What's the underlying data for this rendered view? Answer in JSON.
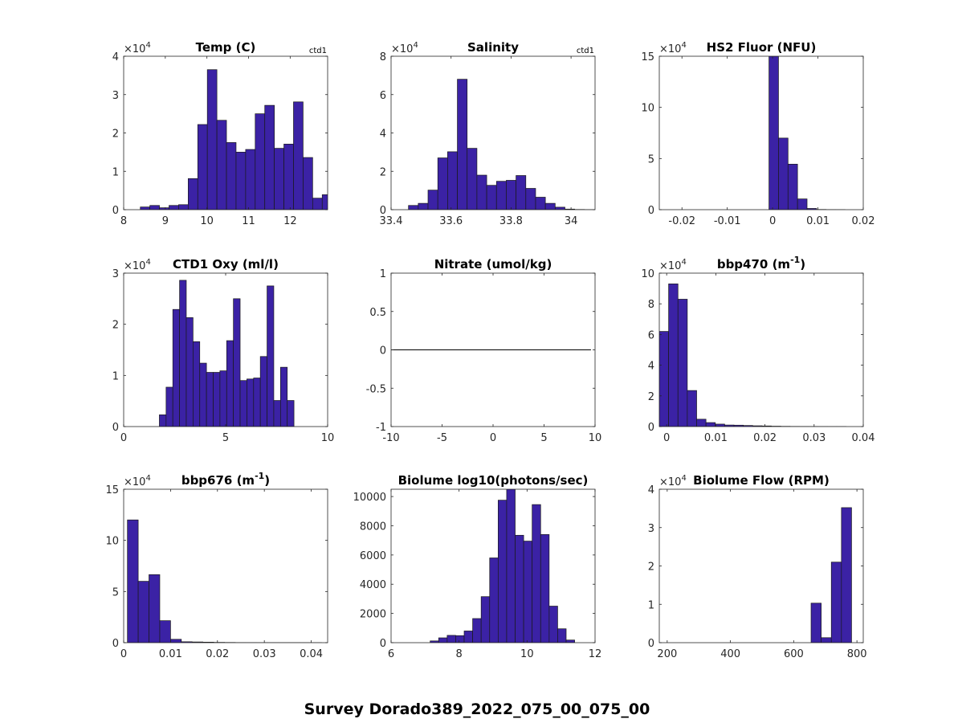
{
  "figure": {
    "suptitle": "Survey Dorado389_2022_075_00_075_00"
  },
  "colors": {
    "bar_fill": "#3b22a5",
    "bar_edge": "#1a1a1a",
    "axis": "#262626"
  },
  "chart_data": [
    {
      "type": "bar",
      "title": "Temp (C)",
      "title_sup": "",
      "corner_label": "ctd1",
      "xlim": [
        8,
        12.9
      ],
      "ylim": [
        0,
        40000
      ],
      "xticks": [
        8,
        9,
        10,
        11,
        12
      ],
      "xtick_labels": [
        "8",
        "9",
        "10",
        "11",
        "12"
      ],
      "yticks": [
        0,
        10000,
        20000,
        30000,
        40000
      ],
      "ytick_labels": [
        "0",
        "1",
        "2",
        "3",
        "4"
      ],
      "exponent": "4",
      "bin_edges": [
        8.4,
        8.63,
        8.86,
        9.09,
        9.32,
        9.55,
        9.78,
        10.01,
        10.24,
        10.47,
        10.7,
        10.93,
        11.16,
        11.39,
        11.62,
        11.85,
        12.08,
        12.31,
        12.54,
        12.77,
        13.0
      ],
      "values": [
        700,
        1100,
        500,
        1100,
        1300,
        8100,
        22200,
        36500,
        23300,
        17500,
        15000,
        15700,
        25000,
        27200,
        16000,
        17100,
        28100,
        13600,
        3000,
        3900
      ],
      "line": null
    },
    {
      "type": "bar",
      "title": "Salinity",
      "title_sup": "",
      "corner_label": "ctd1",
      "xlim": [
        33.4,
        34.08
      ],
      "ylim": [
        0,
        80000
      ],
      "xticks": [
        33.4,
        33.6,
        33.8,
        34.0
      ],
      "xtick_labels": [
        "33.4",
        "33.6",
        "33.8",
        "34"
      ],
      "yticks": [
        0,
        20000,
        40000,
        60000,
        80000
      ],
      "ytick_labels": [
        "0",
        "2",
        "4",
        "6",
        "8"
      ],
      "exponent": "4",
      "bin_edges": [
        33.458,
        33.4906,
        33.5232,
        33.5558,
        33.5884,
        33.621,
        33.6536,
        33.6862,
        33.7188,
        33.7514,
        33.784,
        33.8166,
        33.8492,
        33.8818,
        33.9144,
        33.947,
        33.9796,
        34.0122,
        34.0448,
        34.0774
      ],
      "values": [
        2200,
        3300,
        10200,
        27000,
        30200,
        68000,
        32000,
        18000,
        12700,
        14800,
        15300,
        17800,
        11100,
        6500,
        3300,
        1300,
        300,
        100,
        20
      ],
      "line": null
    },
    {
      "type": "bar",
      "title": "HS2 Fluor (NFU)",
      "title_sup": "",
      "corner_label": "",
      "xlim": [
        -0.025,
        0.02
      ],
      "ylim": [
        0,
        150000
      ],
      "xticks": [
        -0.02,
        -0.01,
        0,
        0.01,
        0.02
      ],
      "xtick_labels": [
        "-0.02",
        "-0.01",
        "0",
        "0.01",
        "0.02"
      ],
      "yticks": [
        0,
        50000,
        100000,
        150000
      ],
      "ytick_labels": [
        "0",
        "5",
        "10",
        "15"
      ],
      "exponent": "4",
      "bin_edges": [
        -0.0008,
        0.0013,
        0.0034,
        0.0055,
        0.0076,
        0.0097,
        0.0118,
        0.0139,
        0.016
      ],
      "values": [
        150000,
        70000,
        44500,
        10500,
        1200,
        200,
        50,
        10
      ],
      "line": null
    },
    {
      "type": "bar",
      "title": "CTD1 Oxy (ml/l)",
      "title_sup": "",
      "corner_label": "",
      "xlim": [
        0,
        10
      ],
      "ylim": [
        0,
        30000
      ],
      "xticks": [
        0,
        5,
        10
      ],
      "xtick_labels": [
        "0",
        "5",
        "10"
      ],
      "yticks": [
        0,
        10000,
        20000,
        30000
      ],
      "ytick_labels": [
        "0",
        "1",
        "2",
        "3"
      ],
      "exponent": "4",
      "bin_edges": [
        1.75,
        2.08,
        2.41,
        2.74,
        3.07,
        3.4,
        3.73,
        4.06,
        4.39,
        4.72,
        5.05,
        5.38,
        5.71,
        6.04,
        6.37,
        6.7,
        7.03,
        7.36,
        7.69,
        8.02,
        8.35,
        8.68
      ],
      "values": [
        2300,
        7700,
        22900,
        28600,
        21300,
        16600,
        12400,
        10600,
        10600,
        10900,
        16800,
        25000,
        9000,
        9300,
        9500,
        13700,
        27500,
        5100,
        11600,
        5100,
        0
      ],
      "line": null
    },
    {
      "type": "line",
      "title": "Nitrate (umol/kg)",
      "title_sup": "",
      "corner_label": "",
      "xlim": [
        -10,
        10
      ],
      "ylim": [
        -1,
        1
      ],
      "xticks": [
        -10,
        -5,
        0,
        5,
        10
      ],
      "xtick_labels": [
        "-10",
        "-5",
        "0",
        "5",
        "10"
      ],
      "yticks": [
        -1,
        -0.5,
        0,
        0.5,
        1
      ],
      "ytick_labels": [
        "-1",
        "-0.5",
        "0",
        "0.5",
        "1"
      ],
      "exponent": "",
      "bin_edges": [],
      "values": [],
      "line": {
        "x": [
          -10,
          9.6
        ],
        "y": [
          0,
          0
        ]
      }
    },
    {
      "type": "bar",
      "title": "bbp470 (m",
      "title_sup": "-1",
      "title_suffix": ")",
      "corner_label": "",
      "xlim": [
        -0.0015,
        0.04
      ],
      "ylim": [
        0,
        100000
      ],
      "xticks": [
        0,
        0.01,
        0.02,
        0.03,
        0.04
      ],
      "xtick_labels": [
        "0",
        "0.01",
        "0.02",
        "0.03",
        "0.04"
      ],
      "yticks": [
        0,
        20000,
        40000,
        60000,
        80000,
        100000
      ],
      "ytick_labels": [
        "0",
        "2",
        "4",
        "6",
        "8",
        "10"
      ],
      "exponent": "4",
      "bin_edges": [
        -0.0015,
        0.0004,
        0.0023,
        0.0042,
        0.0061,
        0.008,
        0.0099,
        0.0118,
        0.0137,
        0.0156,
        0.0175,
        0.0194,
        0.0213,
        0.0232,
        0.0251,
        0.027,
        0.0289,
        0.0308,
        0.0327,
        0.0346,
        0.0365
      ],
      "values": [
        62000,
        93000,
        83000,
        23500,
        4800,
        2600,
        1600,
        1000,
        900,
        700,
        500,
        400,
        250,
        150,
        100,
        80,
        60,
        40,
        20,
        10
      ],
      "line": null
    },
    {
      "type": "bar",
      "title": "bbp676 (m",
      "title_sup": "-1",
      "title_suffix": ")",
      "corner_label": "",
      "xlim": [
        0,
        0.0435
      ],
      "ylim": [
        0,
        150000
      ],
      "xticks": [
        0,
        0.01,
        0.02,
        0.03,
        0.04
      ],
      "xtick_labels": [
        "0",
        "0.01",
        "0.02",
        "0.03",
        "0.04"
      ],
      "yticks": [
        0,
        50000,
        100000,
        150000
      ],
      "ytick_labels": [
        "0",
        "5",
        "10",
        "15"
      ],
      "exponent": "4",
      "bin_edges": [
        0.0008,
        0.0031,
        0.0054,
        0.0077,
        0.01,
        0.0123,
        0.0146,
        0.0169,
        0.0192,
        0.0215,
        0.0238,
        0.0261,
        0.0284,
        0.0307,
        0.033,
        0.0353,
        0.0376,
        0.0399,
        0.0422
      ],
      "values": [
        120000,
        60000,
        66500,
        21500,
        3300,
        900,
        700,
        500,
        300,
        200,
        120,
        80,
        50,
        40,
        30,
        20,
        10,
        5
      ],
      "line": null
    },
    {
      "type": "bar",
      "title": "Biolume log10(photons/sec)",
      "title_sup": "",
      "corner_label": "",
      "xlim": [
        6,
        12
      ],
      "ylim": [
        0,
        10500
      ],
      "xticks": [
        6,
        8,
        10,
        12
      ],
      "xtick_labels": [
        "6",
        "8",
        "10",
        "12"
      ],
      "yticks": [
        0,
        2000,
        4000,
        6000,
        8000,
        10000
      ],
      "ytick_labels": [
        "0",
        "2000",
        "4000",
        "6000",
        "8000",
        "10000"
      ],
      "exponent": "",
      "bin_edges": [
        7.15,
        7.4,
        7.65,
        7.9,
        8.15,
        8.4,
        8.65,
        8.9,
        9.15,
        9.4,
        9.65,
        9.9,
        10.15,
        10.4,
        10.65,
        10.9,
        11.15,
        11.4
      ],
      "values": [
        120,
        330,
        500,
        480,
        800,
        1650,
        3150,
        5800,
        9750,
        10500,
        7350,
        6950,
        9450,
        7400,
        2500,
        950,
        180
      ],
      "line": null
    },
    {
      "type": "bar",
      "title": "Biolume Flow (RPM)",
      "title_sup": "",
      "corner_label": "",
      "xlim": [
        175,
        820
      ],
      "ylim": [
        0,
        40000
      ],
      "xticks": [
        200,
        400,
        600,
        800
      ],
      "xtick_labels": [
        "200",
        "400",
        "600",
        "800"
      ],
      "yticks": [
        0,
        10000,
        20000,
        30000,
        40000
      ],
      "ytick_labels": [
        "0",
        "1",
        "2",
        "3",
        "4"
      ],
      "exponent": "4",
      "bin_edges": [
        655,
        687,
        719,
        751,
        783
      ],
      "values": [
        10300,
        1300,
        21000,
        35200
      ],
      "line": null
    }
  ]
}
